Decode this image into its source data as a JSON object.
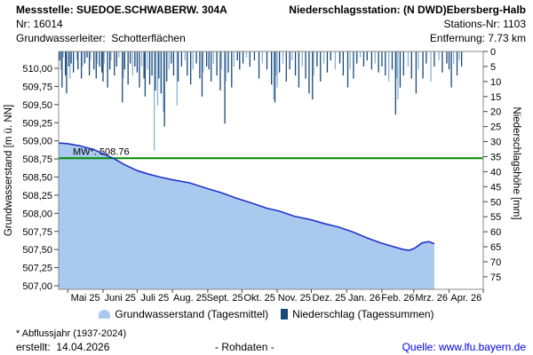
{
  "header": {
    "row1_left": "Messstelle: SUEDOE.SCHWABERW. 304A",
    "row1_right": "Niederschlagsstation: (N DWD)Ebersberg-Halb",
    "row2_left": "Nr: 16014",
    "row2_right": "Stations-Nr: 1103",
    "row3_left": "Grundwasserleiter:  Schotterflächen",
    "row3_right": "Entfernung: 7.73 km"
  },
  "legend": {
    "groundwater": "Grundwasserstand (Tagesmittel)",
    "precipitation": "Niederschlag (Tagessummen)"
  },
  "footer": {
    "footnote": "* Abflussjahr (1937-2024)",
    "created": "erstellt:  14.04.2026",
    "center": "- Rohdaten -",
    "source": "Quelle: www.lfu.bayern.de"
  },
  "chart_data": {
    "type": "combo",
    "x_axis": {
      "start": "2025-04-23",
      "end": "2026-05-01",
      "month_ticks": [
        "2025-05-01",
        "2025-06-01",
        "2025-07-01",
        "2025-08-01",
        "2025-09-01",
        "2025-10-01",
        "2025-11-01",
        "2025-12-01",
        "2026-01-01",
        "2026-02-01",
        "2026-03-01",
        "2026-04-01",
        "2026-05-01"
      ],
      "month_labels": [
        "Mai 25",
        "Juni 25",
        "Juli 25",
        "Aug. 25",
        "Sept. 25",
        "Okt. 25",
        "Nov. 25",
        "Dez. 25",
        "Jan. 26",
        "Feb. 26",
        "Mrz. 26",
        "Apr. 26"
      ]
    },
    "y_left": {
      "label": "Grundwasserstand [m ü. NN]",
      "min": 507.0,
      "max": 510.0,
      "tick_step": 0.25,
      "decimal_comma": true
    },
    "y_right": {
      "label": "Niederschlagshöhe [mm]",
      "min": 0,
      "max": 75,
      "tick_step": 5,
      "inverted": true
    },
    "mean_line": {
      "label": "MW*: 508.76",
      "value": 508.76,
      "color": "#008a00"
    },
    "frame_color": "#8a8a8a",
    "groundwater": {
      "name": "Grundwasserstand (Tagesmittel)",
      "line_color": "#2233cc",
      "fill_color": "#a9c9ef",
      "points": [
        [
          "2025-04-23",
          508.97
        ],
        [
          "2025-05-01",
          508.96
        ],
        [
          "2025-05-12",
          508.93
        ],
        [
          "2025-05-24",
          508.88
        ],
        [
          "2025-06-01",
          508.82
        ],
        [
          "2025-06-10",
          508.76
        ],
        [
          "2025-06-20",
          508.67
        ],
        [
          "2025-07-01",
          508.59
        ],
        [
          "2025-07-11",
          508.54
        ],
        [
          "2025-07-21",
          508.5
        ],
        [
          "2025-08-02",
          508.46
        ],
        [
          "2025-08-16",
          508.42
        ],
        [
          "2025-09-01",
          508.34
        ],
        [
          "2025-09-12",
          508.29
        ],
        [
          "2025-09-26",
          508.21
        ],
        [
          "2025-10-08",
          508.15
        ],
        [
          "2025-10-23",
          508.07
        ],
        [
          "2025-11-03",
          508.03
        ],
        [
          "2025-11-16",
          507.96
        ],
        [
          "2025-12-01",
          507.91
        ],
        [
          "2025-12-12",
          507.86
        ],
        [
          "2025-12-25",
          507.81
        ],
        [
          "2026-01-07",
          507.74
        ],
        [
          "2026-01-19",
          507.66
        ],
        [
          "2026-01-31",
          507.59
        ],
        [
          "2026-02-11",
          507.54
        ],
        [
          "2026-02-20",
          507.5
        ],
        [
          "2026-02-25",
          507.49
        ],
        [
          "2026-03-02",
          507.52
        ],
        [
          "2026-03-08",
          507.59
        ],
        [
          "2026-03-14",
          507.61
        ],
        [
          "2026-03-19",
          507.58
        ]
      ]
    },
    "precipitation": {
      "name": "Niederschlag (Tagessummen)",
      "colors": {
        "dark": "#19497b",
        "light": "#8ab1d2"
      },
      "bars": [
        [
          "2025-04-24",
          3,
          "d"
        ],
        [
          "2025-04-25",
          6,
          "l"
        ],
        [
          "2025-04-26",
          12,
          "d"
        ],
        [
          "2025-04-27",
          2,
          "l"
        ],
        [
          "2025-04-29",
          8,
          "d"
        ],
        [
          "2025-04-30",
          14,
          "d"
        ],
        [
          "2025-05-02",
          5,
          "d"
        ],
        [
          "2025-05-03",
          9,
          "l"
        ],
        [
          "2025-05-04",
          4,
          "d"
        ],
        [
          "2025-05-06",
          7,
          "d"
        ],
        [
          "2025-05-09",
          3,
          "l"
        ],
        [
          "2025-05-10",
          6,
          "d"
        ],
        [
          "2025-05-13",
          9,
          "d"
        ],
        [
          "2025-05-14",
          5,
          "l"
        ],
        [
          "2025-05-16",
          4,
          "d"
        ],
        [
          "2025-05-18",
          2,
          "d"
        ],
        [
          "2025-05-20",
          8,
          "d"
        ],
        [
          "2025-05-21",
          3,
          "l"
        ],
        [
          "2025-05-24",
          6,
          "d"
        ],
        [
          "2025-05-26",
          9,
          "d"
        ],
        [
          "2025-05-27",
          4,
          "l"
        ],
        [
          "2025-05-29",
          5,
          "d"
        ],
        [
          "2025-05-31",
          7,
          "d"
        ],
        [
          "2025-06-01",
          10,
          "d"
        ],
        [
          "2025-06-02",
          4,
          "l"
        ],
        [
          "2025-06-05",
          12,
          "d"
        ],
        [
          "2025-06-07",
          6,
          "d"
        ],
        [
          "2025-06-08",
          3,
          "l"
        ],
        [
          "2025-06-11",
          8,
          "d"
        ],
        [
          "2025-06-13",
          5,
          "d"
        ],
        [
          "2025-06-15",
          2,
          "l"
        ],
        [
          "2025-06-18",
          17,
          "d"
        ],
        [
          "2025-06-19",
          9,
          "l"
        ],
        [
          "2025-06-20",
          6,
          "d"
        ],
        [
          "2025-06-23",
          11,
          "d"
        ],
        [
          "2025-06-25",
          4,
          "d"
        ],
        [
          "2025-06-27",
          8,
          "l"
        ],
        [
          "2025-06-29",
          5,
          "d"
        ],
        [
          "2025-07-01",
          7,
          "d"
        ],
        [
          "2025-07-03",
          12,
          "d"
        ],
        [
          "2025-07-05",
          5,
          "l"
        ],
        [
          "2025-07-07",
          9,
          "d"
        ],
        [
          "2025-07-08",
          15,
          "d"
        ],
        [
          "2025-07-10",
          6,
          "l"
        ],
        [
          "2025-07-12",
          11,
          "d"
        ],
        [
          "2025-07-14",
          8,
          "d"
        ],
        [
          "2025-07-16",
          33,
          "l"
        ],
        [
          "2025-07-17",
          13,
          "d"
        ],
        [
          "2025-07-19",
          18,
          "l"
        ],
        [
          "2025-07-20",
          9,
          "d"
        ],
        [
          "2025-07-22",
          14,
          "d"
        ],
        [
          "2025-07-24",
          20,
          "l"
        ],
        [
          "2025-07-25",
          25,
          "d"
        ],
        [
          "2025-07-27",
          10,
          "d"
        ],
        [
          "2025-07-29",
          6,
          "l"
        ],
        [
          "2025-07-31",
          4,
          "d"
        ],
        [
          "2025-08-02",
          8,
          "d"
        ],
        [
          "2025-08-05",
          18,
          "l"
        ],
        [
          "2025-08-06",
          10,
          "d"
        ],
        [
          "2025-08-09",
          5,
          "d"
        ],
        [
          "2025-08-12",
          3,
          "l"
        ],
        [
          "2025-08-14",
          8,
          "d"
        ],
        [
          "2025-08-17",
          11,
          "d"
        ],
        [
          "2025-08-19",
          6,
          "l"
        ],
        [
          "2025-08-22",
          4,
          "d"
        ],
        [
          "2025-08-25",
          9,
          "d"
        ],
        [
          "2025-08-27",
          15,
          "d"
        ],
        [
          "2025-08-28",
          7,
          "l"
        ],
        [
          "2025-08-31",
          5,
          "d"
        ],
        [
          "2025-09-02",
          6,
          "d"
        ],
        [
          "2025-09-04",
          10,
          "d"
        ],
        [
          "2025-09-06",
          4,
          "l"
        ],
        [
          "2025-09-09",
          8,
          "d"
        ],
        [
          "2025-09-12",
          13,
          "d"
        ],
        [
          "2025-09-13",
          6,
          "l"
        ],
        [
          "2025-09-16",
          24,
          "d"
        ],
        [
          "2025-09-17",
          10,
          "l"
        ],
        [
          "2025-09-19",
          7,
          "d"
        ],
        [
          "2025-09-22",
          12,
          "d"
        ],
        [
          "2025-09-24",
          5,
          "l"
        ],
        [
          "2025-09-27",
          3,
          "d"
        ],
        [
          "2025-09-29",
          6,
          "d"
        ],
        [
          "2025-10-02",
          4,
          "d"
        ],
        [
          "2025-10-05",
          2,
          "l"
        ],
        [
          "2025-10-08",
          5,
          "d"
        ],
        [
          "2025-10-12",
          3,
          "d"
        ],
        [
          "2025-10-16",
          9,
          "d"
        ],
        [
          "2025-10-19",
          4,
          "l"
        ],
        [
          "2025-10-23",
          6,
          "d"
        ],
        [
          "2025-10-27",
          11,
          "d"
        ],
        [
          "2025-10-29",
          16,
          "l"
        ],
        [
          "2025-10-30",
          17,
          "d"
        ],
        [
          "2025-10-31",
          8,
          "l"
        ],
        [
          "2025-11-01",
          12,
          "l"
        ],
        [
          "2025-11-03",
          7,
          "d"
        ],
        [
          "2025-11-06",
          4,
          "l"
        ],
        [
          "2025-11-09",
          10,
          "d"
        ],
        [
          "2025-11-12",
          6,
          "d"
        ],
        [
          "2025-11-14",
          3,
          "l"
        ],
        [
          "2025-11-17",
          8,
          "d"
        ],
        [
          "2025-11-20",
          12,
          "d"
        ],
        [
          "2025-11-23",
          5,
          "l"
        ],
        [
          "2025-11-26",
          9,
          "d"
        ],
        [
          "2025-11-29",
          14,
          "d"
        ],
        [
          "2025-12-02",
          16,
          "d"
        ],
        [
          "2025-12-03",
          8,
          "l"
        ],
        [
          "2025-12-06",
          5,
          "d"
        ],
        [
          "2025-12-09",
          10,
          "d"
        ],
        [
          "2025-12-12",
          4,
          "l"
        ],
        [
          "2025-12-15",
          7,
          "d"
        ],
        [
          "2025-12-18",
          3,
          "d"
        ],
        [
          "2025-12-22",
          6,
          "l"
        ],
        [
          "2025-12-26",
          4,
          "d"
        ],
        [
          "2025-12-29",
          8,
          "d"
        ],
        [
          "2026-01-02",
          12,
          "d"
        ],
        [
          "2026-01-04",
          6,
          "l"
        ],
        [
          "2026-01-07",
          9,
          "d"
        ],
        [
          "2026-01-10",
          4,
          "d"
        ],
        [
          "2026-01-13",
          2,
          "l"
        ],
        [
          "2026-01-16",
          5,
          "d"
        ],
        [
          "2026-01-19",
          3,
          "d"
        ],
        [
          "2026-01-23",
          6,
          "d"
        ],
        [
          "2026-01-26",
          4,
          "l"
        ],
        [
          "2026-01-29",
          7,
          "d"
        ],
        [
          "2026-02-01",
          5,
          "d"
        ],
        [
          "2026-02-04",
          8,
          "d"
        ],
        [
          "2026-02-07",
          10,
          "l"
        ],
        [
          "2026-02-10",
          6,
          "d"
        ],
        [
          "2026-02-13",
          21,
          "d"
        ],
        [
          "2026-02-14",
          9,
          "l"
        ],
        [
          "2026-02-15",
          16,
          "l"
        ],
        [
          "2026-02-17",
          12,
          "d"
        ],
        [
          "2026-02-20",
          8,
          "d"
        ],
        [
          "2026-02-24",
          5,
          "l"
        ],
        [
          "2026-02-27",
          9,
          "d"
        ],
        [
          "2026-03-03",
          14,
          "d"
        ],
        [
          "2026-03-05",
          6,
          "l"
        ],
        [
          "2026-03-09",
          9,
          "d"
        ],
        [
          "2026-03-12",
          4,
          "d"
        ],
        [
          "2026-03-16",
          10,
          "l"
        ],
        [
          "2026-03-19",
          5,
          "d"
        ],
        [
          "2026-03-23",
          3,
          "l"
        ],
        [
          "2026-03-26",
          7,
          "d"
        ],
        [
          "2026-03-30",
          4,
          "d"
        ],
        [
          "2026-04-01",
          6,
          "d"
        ],
        [
          "2026-04-03",
          12,
          "d"
        ],
        [
          "2026-04-05",
          4,
          "l"
        ],
        [
          "2026-04-08",
          8,
          "d"
        ],
        [
          "2026-04-10",
          3,
          "l"
        ],
        [
          "2026-04-12",
          5,
          "d"
        ]
      ]
    }
  }
}
